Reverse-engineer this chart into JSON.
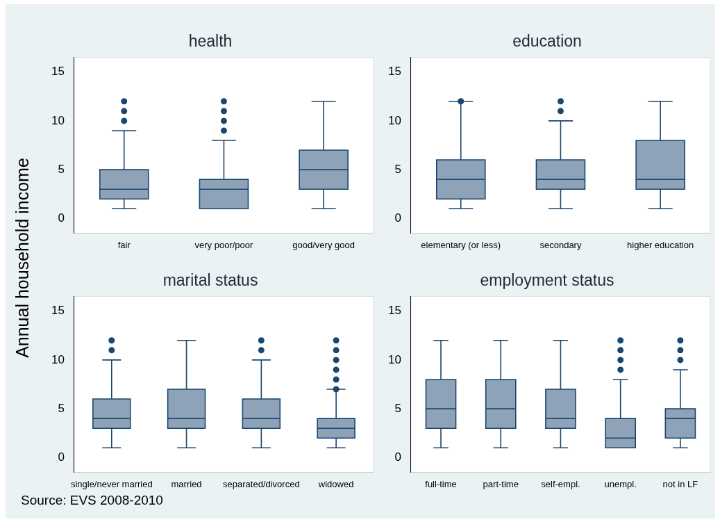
{
  "chart_data": [
    {
      "type": "box",
      "title": "health",
      "ylabel": "Annual household income",
      "annotations": [
        "Source: EVS 2008-2010"
      ],
      "categories": [
        "fair",
        "very poor/poor",
        "good/very good"
      ],
      "ylim": [
        -1.5,
        16.5
      ],
      "yticks": [
        0,
        5,
        10,
        15
      ],
      "grid": false,
      "legend": false,
      "series": [
        {
          "color": "#8ea2b8",
          "boxes": [
            {
              "low": 1,
              "q1": 2,
              "median": 3,
              "q3": 5,
              "high": 9,
              "outliers": [
                10,
                11,
                12
              ]
            },
            {
              "low": 1,
              "q1": 1,
              "median": 3,
              "q3": 4,
              "high": 8,
              "outliers": [
                9,
                10,
                11,
                12
              ]
            },
            {
              "low": 1,
              "q1": 3,
              "median": 5,
              "q3": 7,
              "high": 12
            }
          ]
        }
      ]
    },
    {
      "type": "box",
      "title": "education",
      "categories": [
        "elementary (or less)",
        "secondary",
        "higher education"
      ],
      "ylim": [
        -1.5,
        16.5
      ],
      "yticks": [
        0,
        5,
        10,
        15
      ],
      "grid": false,
      "legend": false,
      "series": [
        {
          "color": "#8ea2b8",
          "boxes": [
            {
              "low": 1,
              "q1": 2,
              "median": 4,
              "q3": 6,
              "high": 12,
              "outliers": [
                12
              ]
            },
            {
              "low": 1,
              "q1": 3,
              "median": 4,
              "q3": 6,
              "high": 10,
              "outliers": [
                11,
                12
              ]
            },
            {
              "low": 1,
              "q1": 3,
              "median": 4,
              "q3": 8,
              "high": 12
            }
          ]
        }
      ]
    },
    {
      "type": "box",
      "title": "marital status",
      "categories": [
        "single/never married",
        "married",
        "separated/divorced",
        "widowed"
      ],
      "ylim": [
        -1.5,
        16.5
      ],
      "yticks": [
        0,
        5,
        10,
        15
      ],
      "grid": false,
      "legend": false,
      "series": [
        {
          "color": "#8ea2b8",
          "boxes": [
            {
              "low": 1,
              "q1": 3,
              "median": 4,
              "q3": 6,
              "high": 10,
              "outliers": [
                11,
                12
              ]
            },
            {
              "low": 1,
              "q1": 3,
              "median": 4,
              "q3": 7,
              "high": 12
            },
            {
              "low": 1,
              "q1": 3,
              "median": 4,
              "q3": 6,
              "high": 10,
              "outliers": [
                11,
                12
              ]
            },
            {
              "low": 1,
              "q1": 2,
              "median": 3,
              "q3": 4,
              "high": 7,
              "outliers": [
                7,
                8,
                9,
                10,
                11,
                12
              ]
            }
          ]
        }
      ]
    },
    {
      "type": "box",
      "title": "employment status",
      "categories": [
        "full-time",
        "part-time",
        "self-empl.",
        "unempl.",
        "not in LF"
      ],
      "ylim": [
        -1.5,
        16.5
      ],
      "yticks": [
        0,
        5,
        10,
        15
      ],
      "grid": false,
      "legend": false,
      "series": [
        {
          "color": "#8ea2b8",
          "boxes": [
            {
              "low": 1,
              "q1": 3,
              "median": 5,
              "q3": 8,
              "high": 12
            },
            {
              "low": 1,
              "q1": 3,
              "median": 5,
              "q3": 8,
              "high": 12
            },
            {
              "low": 1,
              "q1": 3,
              "median": 4,
              "q3": 7,
              "high": 12
            },
            {
              "low": 1,
              "q1": 1,
              "median": 2,
              "q3": 4,
              "high": 8,
              "outliers": [
                9,
                10,
                11,
                12
              ]
            },
            {
              "low": 1,
              "q1": 2,
              "median": 4,
              "q3": 5,
              "high": 9,
              "outliers": [
                10,
                11,
                12
              ]
            }
          ]
        }
      ]
    }
  ]
}
